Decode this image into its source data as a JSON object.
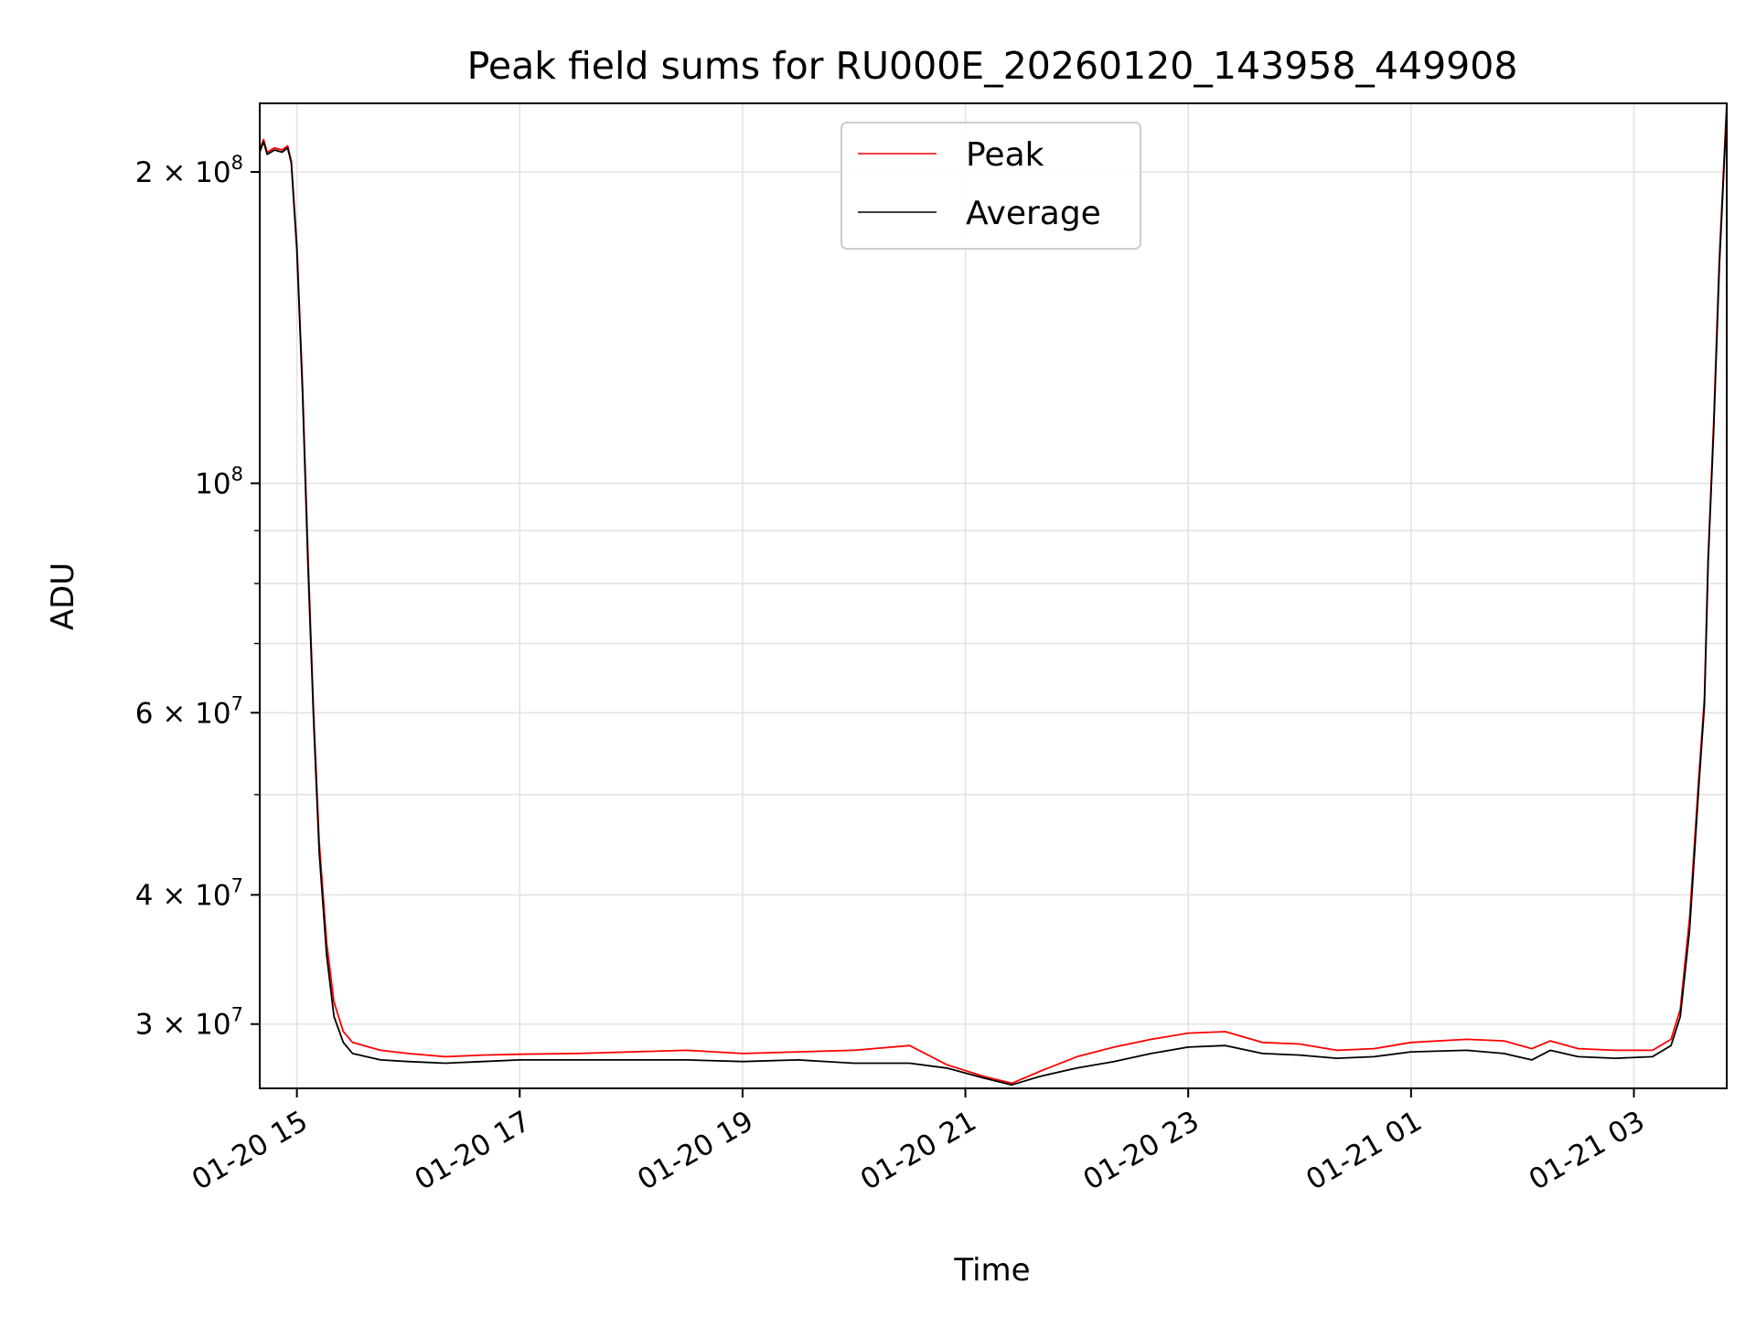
{
  "chart_data": {
    "type": "line",
    "title": "Peak field sums for RU000E_20260120_143958_449908",
    "xlabel": "Time",
    "ylabel": "ADU",
    "yscale": "log",
    "grid": true,
    "legend_placement": "top-center",
    "xlim": [
      "2026-01-20 14:40",
      "2026-01-21 03:50"
    ],
    "ylim": [
      26000000,
      233000000
    ],
    "x_ticks": [
      {
        "value": "2026-01-20 15:00",
        "label": "01-20 15"
      },
      {
        "value": "2026-01-20 17:00",
        "label": "01-20 17"
      },
      {
        "value": "2026-01-20 19:00",
        "label": "01-20 19"
      },
      {
        "value": "2026-01-20 21:00",
        "label": "01-20 21"
      },
      {
        "value": "2026-01-20 23:00",
        "label": "01-20 23"
      },
      {
        "value": "2026-01-21 01:00",
        "label": "01-21 01"
      },
      {
        "value": "2026-01-21 03:00",
        "label": "01-21 03"
      }
    ],
    "y_ticks": [
      {
        "value": 30000000,
        "label": "3 × 10⁷",
        "mantissa": "3 × 10",
        "exponent": "7"
      },
      {
        "value": 40000000,
        "label": "4 × 10⁷",
        "mantissa": "4 × 10",
        "exponent": "7"
      },
      {
        "value": 60000000,
        "label": "6 × 10⁷",
        "mantissa": "6 × 10",
        "exponent": "7"
      },
      {
        "value": 100000000,
        "label": "10⁸",
        "mantissa": "10",
        "exponent": "8"
      },
      {
        "value": 200000000,
        "label": "2 × 10⁸",
        "mantissa": "2 × 10",
        "exponent": "8"
      }
    ],
    "y_minor_ticks": [
      50000000,
      70000000,
      80000000,
      90000000
    ],
    "series": [
      {
        "name": "Peak",
        "color": "#ff0000",
        "points": [
          [
            "2026-01-20 14:40",
            210000000
          ],
          [
            "2026-01-20 14:42",
            215000000
          ],
          [
            "2026-01-20 14:44",
            209000000
          ],
          [
            "2026-01-20 14:48",
            211000000
          ],
          [
            "2026-01-20 14:52",
            210000000
          ],
          [
            "2026-01-20 14:55",
            212000000
          ],
          [
            "2026-01-20 14:57",
            205000000
          ],
          [
            "2026-01-20 15:00",
            170000000
          ],
          [
            "2026-01-20 15:03",
            125000000
          ],
          [
            "2026-01-20 15:06",
            85000000
          ],
          [
            "2026-01-20 15:09",
            60000000
          ],
          [
            "2026-01-20 15:12",
            45000000
          ],
          [
            "2026-01-20 15:16",
            36000000
          ],
          [
            "2026-01-20 15:20",
            31500000
          ],
          [
            "2026-01-20 15:25",
            29500000
          ],
          [
            "2026-01-20 15:30",
            28800000
          ],
          [
            "2026-01-20 15:45",
            28300000
          ],
          [
            "2026-01-20 16:00",
            28100000
          ],
          [
            "2026-01-20 16:20",
            27900000
          ],
          [
            "2026-01-20 16:40",
            28000000
          ],
          [
            "2026-01-20 17:00",
            28050000
          ],
          [
            "2026-01-20 17:30",
            28100000
          ],
          [
            "2026-01-20 18:00",
            28200000
          ],
          [
            "2026-01-20 18:30",
            28300000
          ],
          [
            "2026-01-20 19:00",
            28100000
          ],
          [
            "2026-01-20 19:30",
            28200000
          ],
          [
            "2026-01-20 20:00",
            28300000
          ],
          [
            "2026-01-20 20:30",
            28600000
          ],
          [
            "2026-01-20 20:50",
            27400000
          ],
          [
            "2026-01-20 21:10",
            26700000
          ],
          [
            "2026-01-20 21:25",
            26300000
          ],
          [
            "2026-01-20 21:40",
            27000000
          ],
          [
            "2026-01-20 22:00",
            27900000
          ],
          [
            "2026-01-20 22:20",
            28500000
          ],
          [
            "2026-01-20 22:40",
            29000000
          ],
          [
            "2026-01-20 23:00",
            29400000
          ],
          [
            "2026-01-20 23:20",
            29500000
          ],
          [
            "2026-01-20 23:40",
            28800000
          ],
          [
            "2026-01-21 00:00",
            28700000
          ],
          [
            "2026-01-21 00:20",
            28300000
          ],
          [
            "2026-01-21 00:40",
            28400000
          ],
          [
            "2026-01-21 01:00",
            28800000
          ],
          [
            "2026-01-21 01:30",
            29000000
          ],
          [
            "2026-01-21 01:50",
            28900000
          ],
          [
            "2026-01-21 02:05",
            28400000
          ],
          [
            "2026-01-21 02:15",
            28900000
          ],
          [
            "2026-01-21 02:30",
            28400000
          ],
          [
            "2026-01-21 02:50",
            28300000
          ],
          [
            "2026-01-21 03:10",
            28300000
          ],
          [
            "2026-01-21 03:20",
            29000000
          ],
          [
            "2026-01-21 03:25",
            31000000
          ],
          [
            "2026-01-21 03:30",
            38000000
          ],
          [
            "2026-01-21 03:35",
            52000000
          ],
          [
            "2026-01-21 03:38",
            62000000
          ],
          [
            "2026-01-21 03:40",
            85000000
          ],
          [
            "2026-01-21 03:43",
            115000000
          ],
          [
            "2026-01-21 03:46",
            165000000
          ],
          [
            "2026-01-21 03:50",
            233000000
          ]
        ]
      },
      {
        "name": "Average",
        "color": "#000000",
        "points": [
          [
            "2026-01-20 14:40",
            209000000
          ],
          [
            "2026-01-20 14:42",
            214000000
          ],
          [
            "2026-01-20 14:44",
            208000000
          ],
          [
            "2026-01-20 14:48",
            210000000
          ],
          [
            "2026-01-20 14:52",
            209000000
          ],
          [
            "2026-01-20 14:55",
            211000000
          ],
          [
            "2026-01-20 14:57",
            204000000
          ],
          [
            "2026-01-20 15:00",
            168000000
          ],
          [
            "2026-01-20 15:03",
            123000000
          ],
          [
            "2026-01-20 15:06",
            83000000
          ],
          [
            "2026-01-20 15:09",
            59000000
          ],
          [
            "2026-01-20 15:12",
            44000000
          ],
          [
            "2026-01-20 15:16",
            35000000
          ],
          [
            "2026-01-20 15:20",
            30500000
          ],
          [
            "2026-01-20 15:25",
            28800000
          ],
          [
            "2026-01-20 15:30",
            28100000
          ],
          [
            "2026-01-20 15:45",
            27700000
          ],
          [
            "2026-01-20 16:00",
            27600000
          ],
          [
            "2026-01-20 16:20",
            27500000
          ],
          [
            "2026-01-20 16:40",
            27600000
          ],
          [
            "2026-01-20 17:00",
            27700000
          ],
          [
            "2026-01-20 17:30",
            27700000
          ],
          [
            "2026-01-20 18:00",
            27700000
          ],
          [
            "2026-01-20 18:30",
            27700000
          ],
          [
            "2026-01-20 19:00",
            27600000
          ],
          [
            "2026-01-20 19:30",
            27700000
          ],
          [
            "2026-01-20 20:00",
            27500000
          ],
          [
            "2026-01-20 20:30",
            27500000
          ],
          [
            "2026-01-20 20:50",
            27200000
          ],
          [
            "2026-01-20 21:10",
            26600000
          ],
          [
            "2026-01-20 21:25",
            26200000
          ],
          [
            "2026-01-20 21:40",
            26700000
          ],
          [
            "2026-01-20 22:00",
            27200000
          ],
          [
            "2026-01-20 22:20",
            27600000
          ],
          [
            "2026-01-20 22:40",
            28100000
          ],
          [
            "2026-01-20 23:00",
            28500000
          ],
          [
            "2026-01-20 23:20",
            28600000
          ],
          [
            "2026-01-20 23:40",
            28100000
          ],
          [
            "2026-01-21 00:00",
            28000000
          ],
          [
            "2026-01-21 00:20",
            27800000
          ],
          [
            "2026-01-21 00:40",
            27900000
          ],
          [
            "2026-01-21 01:00",
            28200000
          ],
          [
            "2026-01-21 01:30",
            28300000
          ],
          [
            "2026-01-21 01:50",
            28100000
          ],
          [
            "2026-01-21 02:05",
            27700000
          ],
          [
            "2026-01-21 02:15",
            28300000
          ],
          [
            "2026-01-21 02:30",
            27900000
          ],
          [
            "2026-01-21 02:50",
            27800000
          ],
          [
            "2026-01-21 03:10",
            27900000
          ],
          [
            "2026-01-21 03:20",
            28600000
          ],
          [
            "2026-01-21 03:25",
            30500000
          ],
          [
            "2026-01-21 03:30",
            37000000
          ],
          [
            "2026-01-21 03:35",
            51000000
          ],
          [
            "2026-01-21 03:38",
            61000000
          ],
          [
            "2026-01-21 03:40",
            84000000
          ],
          [
            "2026-01-21 03:43",
            113000000
          ],
          [
            "2026-01-21 03:46",
            162000000
          ],
          [
            "2026-01-21 03:50",
            230000000
          ]
        ]
      }
    ]
  }
}
